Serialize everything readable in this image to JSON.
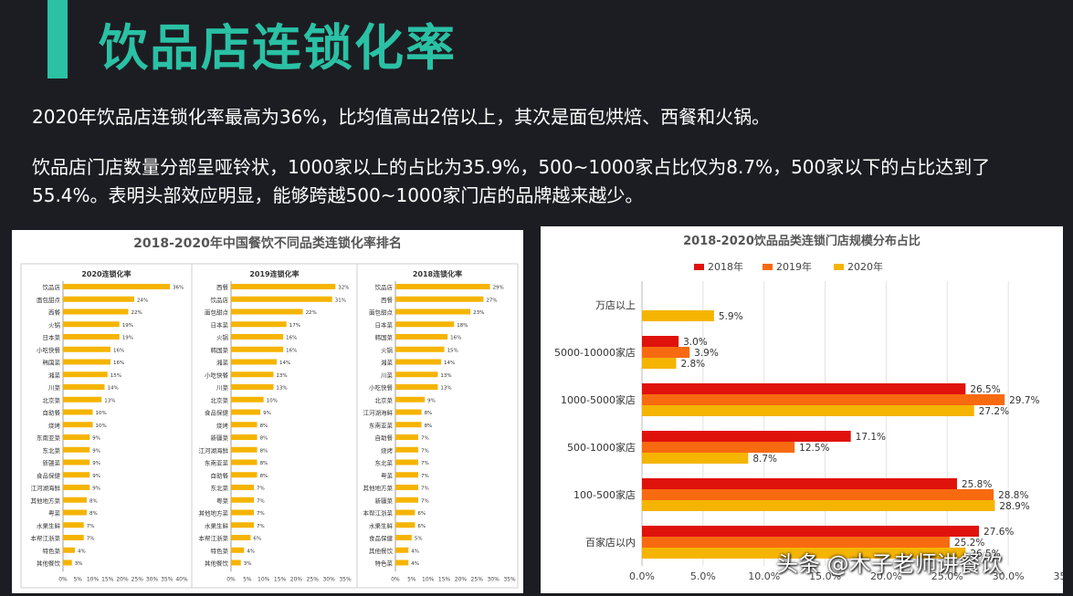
{
  "header": {
    "title": "饮品店连锁化率",
    "paragraph1": "2020年饮品店连锁化率最高为36%，比均值高出2倍以上，其次是面包烘焙、西餐和火锅。",
    "paragraph2": "饮品店门店数量分部呈哑铃状，1000家以上的占比为35.9%，500~1000家占比仅为8.7%，500家以下的占比达到了55.4%。表明头部效应明显，能够跨越500~1000家门店的品牌越来越少。"
  },
  "watermark": "头条 @木子老师讲餐饮",
  "colors": {
    "accent": "#2ac1a5",
    "background": "#1c1d22",
    "bar_gold": "#f5b400",
    "red_2018": "#e0120c",
    "orange_2019": "#f86a10",
    "gold_2020": "#f5b400"
  },
  "chart_data": [
    {
      "type": "bar",
      "orientation": "horizontal",
      "title": "2018-2020年中国餐饮不同品类连锁化率排名",
      "xticks": [
        "0%",
        "5%",
        "10%",
        "15%",
        "20%",
        "25%",
        "30%",
        "35%",
        "40%"
      ],
      "panels": [
        {
          "subtitle": "2020连锁化率",
          "xlim": [
            0,
            40
          ],
          "xticks": [
            "0%",
            "5%",
            "10%",
            "15%",
            "20%",
            "25%",
            "30%",
            "35%",
            "40%"
          ],
          "categories": [
            "饮品店",
            "面包甜点",
            "西餐",
            "火锅",
            "日本菜",
            "小吃快餐",
            "韩国菜",
            "湘菜",
            "川菜",
            "北京菜",
            "自助餐",
            "烧烤",
            "东南亚菜",
            "东北菜",
            "新疆菜",
            "食品保健",
            "江河湖海鲜",
            "其他地方菜",
            "粤菜",
            "水果生鲜",
            "本帮江浙菜",
            "特色菜",
            "其他餐饮"
          ],
          "values": [
            36,
            24,
            22,
            19,
            19,
            16,
            16,
            15,
            14,
            13,
            10,
            10,
            9,
            9,
            9,
            9,
            9,
            8,
            8,
            7,
            7,
            4,
            3
          ],
          "labels": [
            "36%",
            "24%",
            "22%",
            "19%",
            "19%",
            "16%",
            "16%",
            "15%",
            "14%",
            "13%",
            "10%",
            "10%",
            "9%",
            "9%",
            "9%",
            "9%",
            "9%",
            "8%",
            "8%",
            "7%",
            "7%",
            "4%",
            "3%"
          ]
        },
        {
          "subtitle": "2019连锁化率",
          "xlim": [
            0,
            35
          ],
          "xticks": [
            "0%",
            "5%",
            "10%",
            "15%",
            "20%",
            "25%",
            "30%",
            "35%"
          ],
          "categories": [
            "西餐",
            "饮品店",
            "面包甜点",
            "日本菜",
            "火锅",
            "韩国菜",
            "湘菜",
            "小吃快餐",
            "川菜",
            "北京菜",
            "食品保健",
            "烧烤",
            "新疆菜",
            "江河湖海鲜",
            "东南亚菜",
            "自助餐",
            "东北菜",
            "粤菜",
            "其他地方菜",
            "水果生鲜",
            "本帮江浙菜",
            "特色菜",
            "其他餐饮"
          ],
          "values": [
            32,
            31,
            22,
            17,
            16,
            16,
            14,
            13,
            13,
            10,
            9,
            8,
            8,
            8,
            8,
            8,
            7,
            7,
            7,
            7,
            6,
            4,
            3
          ],
          "labels": [
            "32%",
            "31%",
            "22%",
            "17%",
            "16%",
            "16%",
            "14%",
            "13%",
            "13%",
            "10%",
            "9%",
            "8%",
            "8%",
            "8%",
            "8%",
            "8%",
            "7%",
            "7%",
            "7%",
            "7%",
            "6%",
            "4%",
            "3%"
          ]
        },
        {
          "subtitle": "2018连锁化率",
          "xlim": [
            0,
            35
          ],
          "xticks": [
            "0%",
            "5%",
            "10%",
            "15%",
            "20%",
            "25%",
            "30%",
            "35%"
          ],
          "categories": [
            "饮品店",
            "西餐",
            "面包甜点",
            "日本菜",
            "韩国菜",
            "火锅",
            "湘菜",
            "川菜",
            "小吃快餐",
            "北京菜",
            "江河湖海鲜",
            "东南亚菜",
            "自助餐",
            "烧烤",
            "东北菜",
            "粤菜",
            "其他地方菜",
            "新疆菜",
            "本帮江浙菜",
            "水果生鲜",
            "食品保健",
            "其他餐饮",
            "特色菜"
          ],
          "values": [
            29,
            27,
            23,
            18,
            16,
            15,
            14,
            13,
            13,
            9,
            8,
            8,
            7,
            7,
            7,
            7,
            7,
            7,
            6,
            6,
            5,
            4,
            4
          ],
          "labels": [
            "29%",
            "27%",
            "23%",
            "18%",
            "16%",
            "15%",
            "14%",
            "13%",
            "13%",
            "9%",
            "8%",
            "8%",
            "7%",
            "7%",
            "7%",
            "7%",
            "7%",
            "7%",
            "6%",
            "6%",
            "5%",
            "4%",
            "4%"
          ]
        }
      ]
    },
    {
      "type": "bar",
      "orientation": "horizontal",
      "title": "2018-2020饮品品类连锁门店规模分布占比",
      "legend": "top",
      "grid": true,
      "categories": [
        "万店以上",
        "5000-10000家店",
        "1000-5000家店",
        "500-1000家店",
        "100-500家店",
        "百家店以内"
      ],
      "xlim": [
        0,
        35
      ],
      "xticks": [
        "0.0%",
        "5.0%",
        "10.0%",
        "15.0%",
        "20.0%",
        "25.0%",
        "30.0%",
        "35.0%"
      ],
      "series": [
        {
          "name": "2018年",
          "color": "#e0120c",
          "values": [
            null,
            3.0,
            26.5,
            17.1,
            25.8,
            27.6
          ],
          "labels": [
            "",
            "3.0%",
            "26.5%",
            "17.1%",
            "25.8%",
            "27.6%"
          ]
        },
        {
          "name": "2019年",
          "color": "#f86a10",
          "values": [
            null,
            3.9,
            29.7,
            12.5,
            28.8,
            25.2
          ],
          "labels": [
            "",
            "3.9%",
            "29.7%",
            "12.5%",
            "28.8%",
            "25.2%"
          ]
        },
        {
          "name": "2020年",
          "color": "#f5b400",
          "values": [
            5.9,
            2.8,
            27.2,
            8.7,
            28.9,
            26.5
          ],
          "labels": [
            "5.9%",
            "2.8%",
            "27.2%",
            "8.7%",
            "28.9%",
            "26.5%"
          ]
        }
      ]
    }
  ]
}
